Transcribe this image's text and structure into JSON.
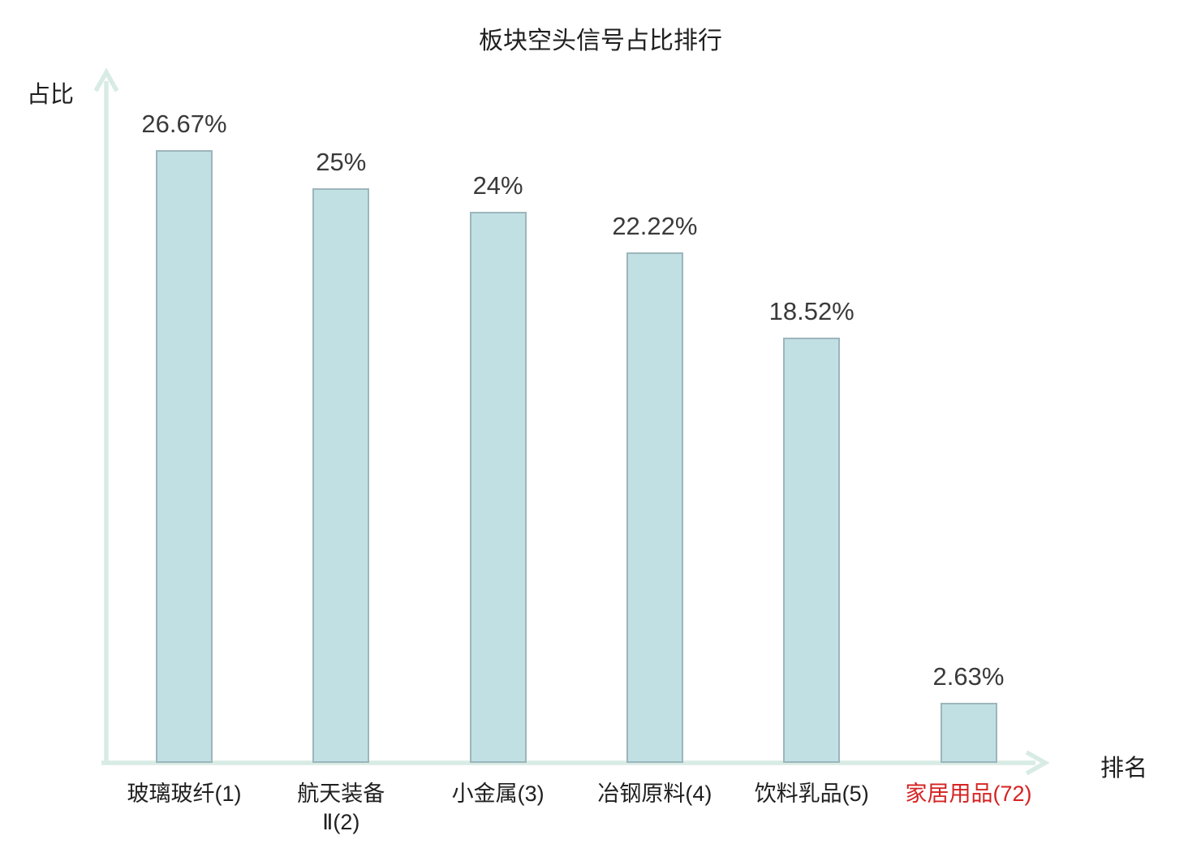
{
  "chart_data": {
    "type": "bar",
    "title": "板块空头信号占比排行",
    "ylabel": "占比",
    "xlabel": "排名",
    "categories": [
      "玻璃玻纤(1)",
      "航天装备Ⅱ(2)",
      "小金属(3)",
      "冶钢原料(4)",
      "饮料乳品(5)",
      "家居用品(72)"
    ],
    "category_display": [
      "玻璃玻纤(1)",
      "航天装备\nⅡ(2)",
      "小金属(3)",
      "冶钢原料(4)",
      "饮料乳品(5)",
      "家居用品(72)"
    ],
    "sector_names": [
      "玻璃玻纤",
      "航天装备Ⅱ",
      "小金属",
      "冶钢原料",
      "饮料乳品",
      "家居用品"
    ],
    "ranks": [
      1,
      2,
      3,
      4,
      5,
      72
    ],
    "values": [
      26.67,
      25,
      24,
      22.22,
      18.52,
      2.63
    ],
    "value_labels": [
      "26.67%",
      "25%",
      "24%",
      "22.22%",
      "18.52%",
      "2.63%"
    ],
    "highlighted_category_index": 5,
    "ylim": [
      0,
      28
    ],
    "grid": false,
    "legend": false,
    "colors": {
      "bar_fill": "#c0e0e4",
      "bar_border": "#9db6bb",
      "axis": "#d8ebe5",
      "text": "#1f1f1f",
      "value_text": "#3a3a3a",
      "highlight_text": "#d62222"
    }
  }
}
